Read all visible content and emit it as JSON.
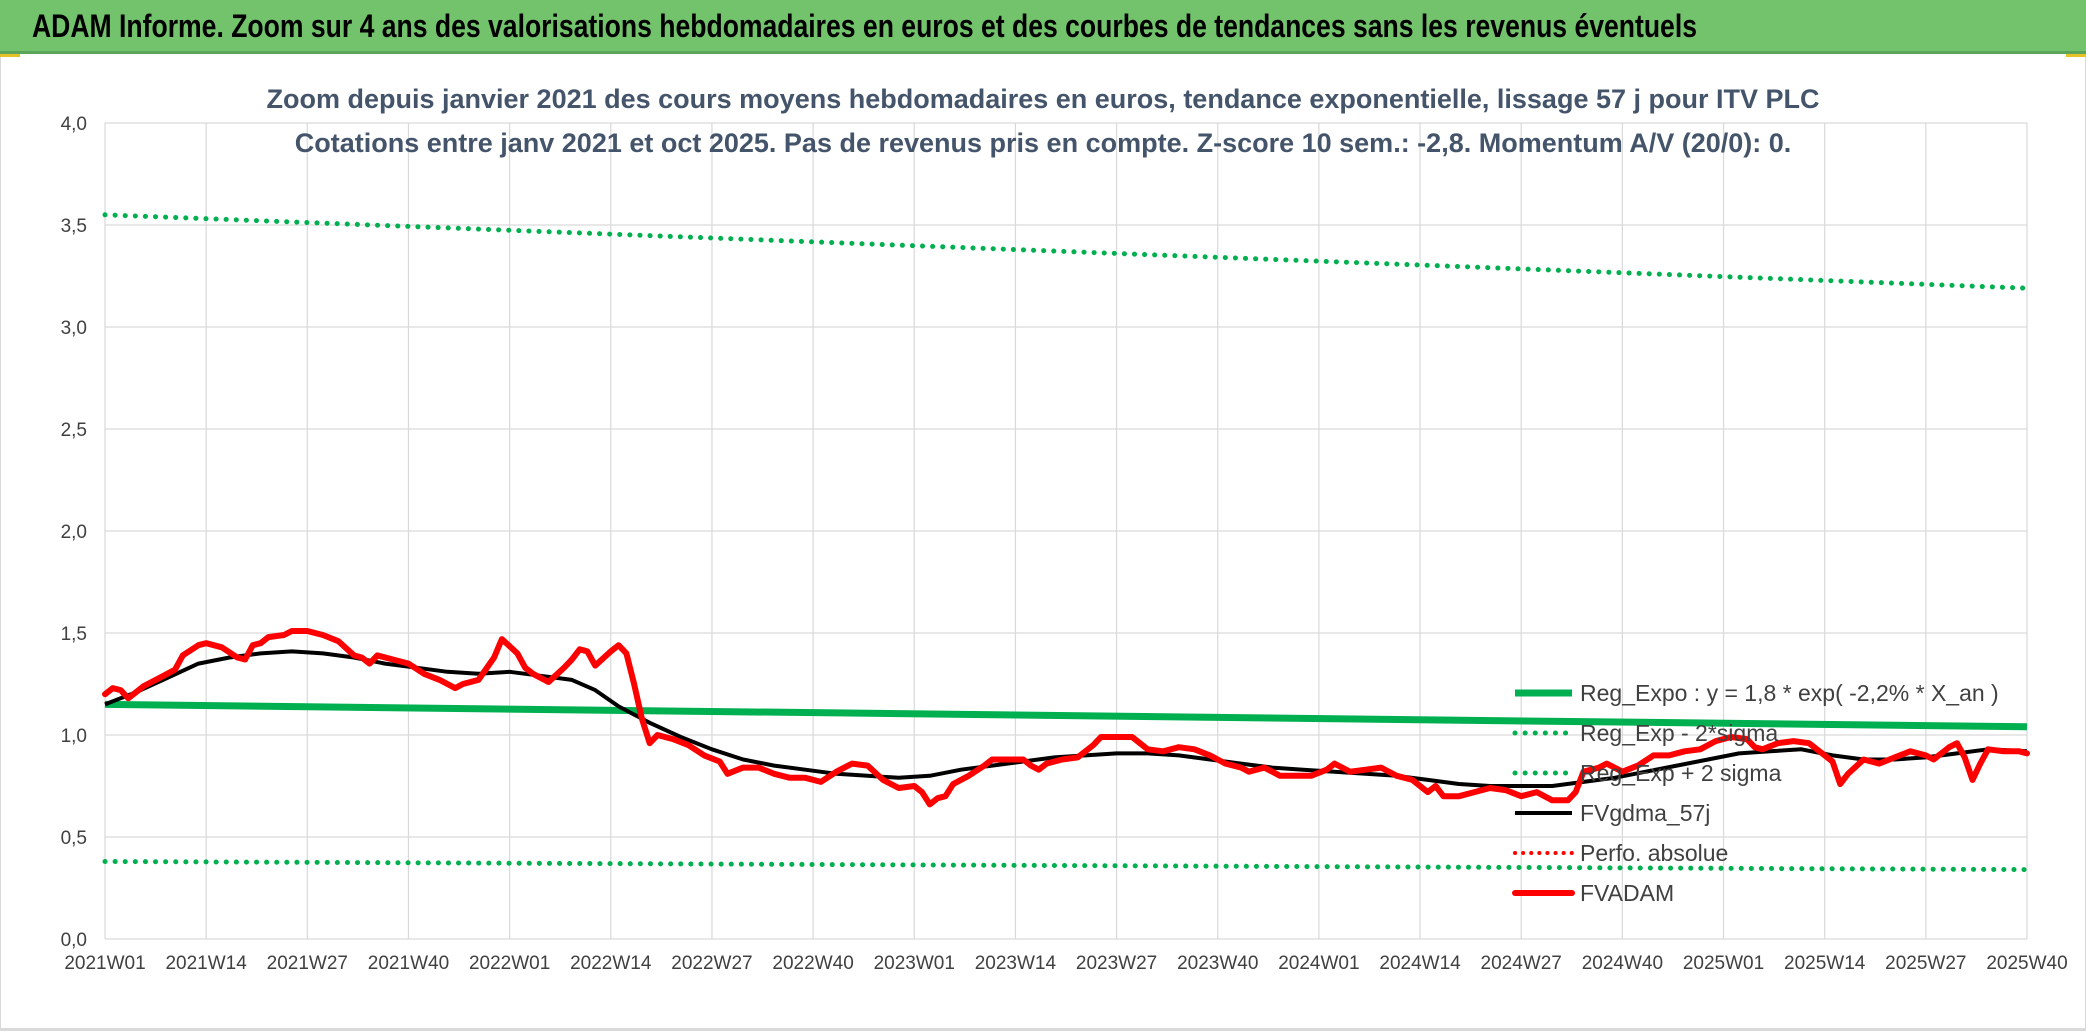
{
  "banner": {
    "title": "ADAM Informe. Zoom sur 4 ans des valorisations hebdomadaires en euros et des courbes de tendances sans les revenus éventuels"
  },
  "colors": {
    "banner_bg": "#72c36c",
    "trend_green": "#00b050",
    "price_red": "#ff0000",
    "ma_black": "#000000",
    "grid": "#d9d9d9"
  },
  "chart_data": {
    "type": "line",
    "title_lines": [
      "Zoom depuis janvier 2021 des cours moyens hebdomadaires en euros, tendance exponentielle, lissage 57 j pour ITV PLC",
      "Cotations entre janv 2021 et oct 2025. Pas de revenus pris en compte. Z-score 10 sem.: -2,8. Momentum A/V (20/0): 0."
    ],
    "xlabel": "",
    "ylabel": "",
    "ylim": [
      0,
      4
    ],
    "yticks": [
      "0,0",
      "0,5",
      "1,0",
      "1,5",
      "2,0",
      "2,5",
      "3,0",
      "3,5",
      "4,0"
    ],
    "xticks": [
      "2021W01",
      "2021W14",
      "2021W27",
      "2021W40",
      "2022W01",
      "2022W14",
      "2022W27",
      "2022W40",
      "2023W01",
      "2023W14",
      "2023W27",
      "2023W40",
      "2024W01",
      "2024W14",
      "2024W27",
      "2024W40",
      "2025W01",
      "2025W14",
      "2025W27",
      "2025W40"
    ],
    "grid": true,
    "legend_position": "right",
    "series": [
      {
        "name": "Reg_Expo : y = 1,8 * exp( -2,2% *  X_an )",
        "style": "solid-thick-green",
        "points": [
          [
            0,
            1.15
          ],
          [
            247,
            1.04
          ]
        ]
      },
      {
        "name": "Reg_Exp - 2*sigma",
        "style": "dotted-green",
        "points": [
          [
            0,
            0.38
          ],
          [
            247,
            0.34
          ]
        ]
      },
      {
        "name": "Reg_Exp + 2 sigma",
        "style": "dotted-green",
        "points": [
          [
            0,
            3.55
          ],
          [
            247,
            3.19
          ]
        ]
      },
      {
        "name": "FVgdma_57j",
        "style": "solid-black",
        "points": [
          [
            0,
            1.15
          ],
          [
            4,
            1.21
          ],
          [
            8,
            1.28
          ],
          [
            12,
            1.35
          ],
          [
            16,
            1.38
          ],
          [
            20,
            1.4
          ],
          [
            24,
            1.41
          ],
          [
            28,
            1.4
          ],
          [
            32,
            1.38
          ],
          [
            36,
            1.35
          ],
          [
            40,
            1.33
          ],
          [
            44,
            1.31
          ],
          [
            48,
            1.3
          ],
          [
            52,
            1.31
          ],
          [
            56,
            1.29
          ],
          [
            60,
            1.27
          ],
          [
            63,
            1.22
          ],
          [
            66,
            1.14
          ],
          [
            70,
            1.06
          ],
          [
            74,
            0.99
          ],
          [
            78,
            0.93
          ],
          [
            82,
            0.88
          ],
          [
            86,
            0.85
          ],
          [
            90,
            0.83
          ],
          [
            94,
            0.81
          ],
          [
            98,
            0.8
          ],
          [
            102,
            0.79
          ],
          [
            106,
            0.8
          ],
          [
            110,
            0.83
          ],
          [
            114,
            0.85
          ],
          [
            118,
            0.87
          ],
          [
            122,
            0.89
          ],
          [
            126,
            0.9
          ],
          [
            130,
            0.91
          ],
          [
            134,
            0.91
          ],
          [
            138,
            0.9
          ],
          [
            142,
            0.88
          ],
          [
            146,
            0.86
          ],
          [
            150,
            0.84
          ],
          [
            154,
            0.83
          ],
          [
            158,
            0.82
          ],
          [
            162,
            0.81
          ],
          [
            166,
            0.8
          ],
          [
            170,
            0.78
          ],
          [
            174,
            0.76
          ],
          [
            178,
            0.75
          ],
          [
            182,
            0.75
          ],
          [
            186,
            0.75
          ],
          [
            190,
            0.77
          ],
          [
            194,
            0.79
          ],
          [
            198,
            0.82
          ],
          [
            202,
            0.85
          ],
          [
            206,
            0.88
          ],
          [
            210,
            0.91
          ],
          [
            214,
            0.92
          ],
          [
            218,
            0.93
          ],
          [
            222,
            0.9
          ],
          [
            226,
            0.88
          ],
          [
            230,
            0.88
          ],
          [
            234,
            0.89
          ],
          [
            238,
            0.91
          ],
          [
            242,
            0.93
          ],
          [
            247,
            0.92
          ]
        ]
      },
      {
        "name": "Perfo. absolue",
        "style": "dotted-red",
        "points": []
      },
      {
        "name": "FVADAM",
        "style": "solid-thick-red",
        "points": [
          [
            0,
            1.2
          ],
          [
            1,
            1.23
          ],
          [
            2,
            1.22
          ],
          [
            3,
            1.18
          ],
          [
            5,
            1.24
          ],
          [
            7,
            1.28
          ],
          [
            9,
            1.32
          ],
          [
            10,
            1.39
          ],
          [
            12,
            1.44
          ],
          [
            13,
            1.45
          ],
          [
            15,
            1.43
          ],
          [
            17,
            1.38
          ],
          [
            18,
            1.37
          ],
          [
            19,
            1.44
          ],
          [
            20,
            1.45
          ],
          [
            21,
            1.48
          ],
          [
            23,
            1.49
          ],
          [
            24,
            1.51
          ],
          [
            26,
            1.51
          ],
          [
            28,
            1.49
          ],
          [
            30,
            1.46
          ],
          [
            32,
            1.39
          ],
          [
            33,
            1.38
          ],
          [
            34,
            1.35
          ],
          [
            35,
            1.39
          ],
          [
            37,
            1.37
          ],
          [
            39,
            1.35
          ],
          [
            41,
            1.3
          ],
          [
            43,
            1.27
          ],
          [
            45,
            1.23
          ],
          [
            46,
            1.25
          ],
          [
            48,
            1.27
          ],
          [
            50,
            1.38
          ],
          [
            51,
            1.47
          ],
          [
            53,
            1.4
          ],
          [
            54,
            1.33
          ],
          [
            55,
            1.3
          ],
          [
            57,
            1.26
          ],
          [
            59,
            1.33
          ],
          [
            60,
            1.37
          ],
          [
            61,
            1.42
          ],
          [
            62,
            1.41
          ],
          [
            63,
            1.34
          ],
          [
            65,
            1.41
          ],
          [
            66,
            1.44
          ],
          [
            67,
            1.4
          ],
          [
            68,
            1.25
          ],
          [
            69,
            1.08
          ],
          [
            70,
            0.96
          ],
          [
            71,
            1.0
          ],
          [
            73,
            0.98
          ],
          [
            75,
            0.95
          ],
          [
            77,
            0.9
          ],
          [
            79,
            0.87
          ],
          [
            80,
            0.81
          ],
          [
            82,
            0.84
          ],
          [
            84,
            0.84
          ],
          [
            86,
            0.81
          ],
          [
            88,
            0.79
          ],
          [
            90,
            0.79
          ],
          [
            92,
            0.77
          ],
          [
            94,
            0.82
          ],
          [
            96,
            0.86
          ],
          [
            98,
            0.85
          ],
          [
            100,
            0.78
          ],
          [
            102,
            0.74
          ],
          [
            104,
            0.75
          ],
          [
            105,
            0.72
          ],
          [
            106,
            0.66
          ],
          [
            107,
            0.69
          ],
          [
            108,
            0.7
          ],
          [
            109,
            0.76
          ],
          [
            111,
            0.8
          ],
          [
            113,
            0.85
          ],
          [
            114,
            0.88
          ],
          [
            116,
            0.88
          ],
          [
            118,
            0.88
          ],
          [
            119,
            0.85
          ],
          [
            120,
            0.83
          ],
          [
            121,
            0.86
          ],
          [
            123,
            0.88
          ],
          [
            125,
            0.89
          ],
          [
            127,
            0.95
          ],
          [
            128,
            0.99
          ],
          [
            130,
            0.99
          ],
          [
            132,
            0.99
          ],
          [
            134,
            0.93
          ],
          [
            136,
            0.92
          ],
          [
            138,
            0.94
          ],
          [
            140,
            0.93
          ],
          [
            142,
            0.9
          ],
          [
            144,
            0.86
          ],
          [
            146,
            0.84
          ],
          [
            147,
            0.82
          ],
          [
            149,
            0.84
          ],
          [
            151,
            0.8
          ],
          [
            153,
            0.8
          ],
          [
            155,
            0.8
          ],
          [
            157,
            0.83
          ],
          [
            158,
            0.86
          ],
          [
            160,
            0.82
          ],
          [
            162,
            0.83
          ],
          [
            164,
            0.84
          ],
          [
            166,
            0.8
          ],
          [
            168,
            0.78
          ],
          [
            170,
            0.72
          ],
          [
            171,
            0.75
          ],
          [
            172,
            0.7
          ],
          [
            174,
            0.7
          ],
          [
            176,
            0.72
          ],
          [
            178,
            0.74
          ],
          [
            180,
            0.73
          ],
          [
            182,
            0.7
          ],
          [
            184,
            0.72
          ],
          [
            186,
            0.68
          ],
          [
            188,
            0.68
          ],
          [
            189,
            0.72
          ],
          [
            190,
            0.82
          ],
          [
            192,
            0.84
          ],
          [
            193,
            0.86
          ],
          [
            195,
            0.82
          ],
          [
            197,
            0.85
          ],
          [
            199,
            0.9
          ],
          [
            201,
            0.9
          ],
          [
            203,
            0.92
          ],
          [
            205,
            0.93
          ],
          [
            207,
            0.97
          ],
          [
            209,
            0.99
          ],
          [
            211,
            0.98
          ],
          [
            212,
            0.94
          ],
          [
            213,
            0.93
          ],
          [
            215,
            0.96
          ],
          [
            217,
            0.97
          ],
          [
            219,
            0.96
          ],
          [
            221,
            0.9
          ],
          [
            222,
            0.87
          ],
          [
            223,
            0.76
          ],
          [
            224,
            0.81
          ],
          [
            226,
            0.88
          ],
          [
            228,
            0.86
          ],
          [
            230,
            0.89
          ],
          [
            232,
            0.92
          ],
          [
            234,
            0.9
          ],
          [
            235,
            0.88
          ],
          [
            237,
            0.94
          ],
          [
            238,
            0.96
          ],
          [
            239,
            0.89
          ],
          [
            240,
            0.78
          ],
          [
            241,
            0.86
          ],
          [
            242,
            0.93
          ],
          [
            244,
            0.92
          ],
          [
            245,
            0.92
          ],
          [
            246,
            0.92
          ],
          [
            247,
            0.91
          ]
        ]
      }
    ]
  }
}
